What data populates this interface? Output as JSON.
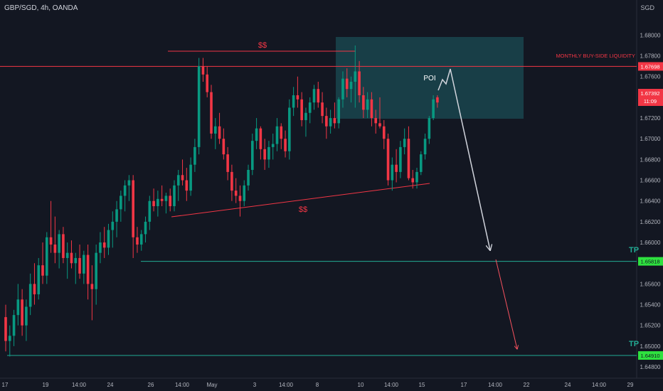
{
  "header": {
    "symbol": "GBP/SGD, 4h, OANDA",
    "currency": "SGD"
  },
  "chart_data": {
    "type": "candlestick",
    "ylim": [
      1.6478,
      1.6827
    ],
    "y_ticks": [
      "1.68000",
      "1.67800",
      "1.67600",
      "1.67400",
      "1.67200",
      "1.67000",
      "1.66800",
      "1.66600",
      "1.66400",
      "1.66200",
      "1.66000",
      "1.65800",
      "1.65600",
      "1.65400",
      "1.65200",
      "1.65000",
      "1.64800"
    ],
    "x_ticks": [
      "17",
      "19",
      "14:00",
      "24",
      "26",
      "14:00",
      "May",
      "3",
      "14:00",
      "8",
      "10",
      "14:00",
      "15",
      "17",
      "14:00",
      "22",
      "24",
      "14:00",
      "29"
    ],
    "price_labels": {
      "liquidity": "1.67698",
      "current": "1.67392",
      "countdown": "11:09",
      "tp1": "1.65818",
      "tp2": "1.64910"
    },
    "annotations": {
      "liquidity_text": "MONTHLY BUY-SIDE LIQUIDITY",
      "top_liquidity": "$$",
      "bottom_liquidity": "$$",
      "poi": "POI",
      "tp1": "TP",
      "tp2": "TP"
    },
    "levels": {
      "liquidity": 1.67698,
      "tp1": 1.65818,
      "tp2": 1.6491
    },
    "candles": [
      [
        1.6528,
        1.654,
        1.6495,
        1.6505
      ],
      [
        1.6505,
        1.652,
        1.649,
        1.651
      ],
      [
        1.651,
        1.6535,
        1.65,
        1.653
      ],
      [
        1.653,
        1.656,
        1.652,
        1.6545
      ],
      [
        1.6545,
        1.6555,
        1.651,
        1.652
      ],
      [
        1.652,
        1.6545,
        1.6505,
        1.6538
      ],
      [
        1.6538,
        1.657,
        1.653,
        1.656
      ],
      [
        1.656,
        1.658,
        1.654,
        1.655
      ],
      [
        1.655,
        1.6585,
        1.6545,
        1.6578
      ],
      [
        1.6578,
        1.66,
        1.656,
        1.6568
      ],
      [
        1.6568,
        1.661,
        1.656,
        1.6605
      ],
      [
        1.6605,
        1.664,
        1.659,
        1.6598
      ],
      [
        1.6598,
        1.6625,
        1.658,
        1.659
      ],
      [
        1.659,
        1.6612,
        1.6575,
        1.6608
      ],
      [
        1.6608,
        1.6615,
        1.658,
        1.6585
      ],
      [
        1.6585,
        1.66,
        1.6565,
        1.659
      ],
      [
        1.659,
        1.6602,
        1.6575,
        1.658
      ],
      [
        1.658,
        1.659,
        1.656,
        1.6585
      ],
      [
        1.6585,
        1.6598,
        1.6565,
        1.657
      ],
      [
        1.657,
        1.6592,
        1.656,
        1.6588
      ],
      [
        1.6588,
        1.6598,
        1.6545,
        1.656
      ],
      [
        1.656,
        1.6578,
        1.6525,
        1.6555
      ],
      [
        1.6555,
        1.6598,
        1.654,
        1.659
      ],
      [
        1.659,
        1.661,
        1.658,
        1.66
      ],
      [
        1.66,
        1.6615,
        1.6585,
        1.6595
      ],
      [
        1.6595,
        1.6618,
        1.6588,
        1.6612
      ],
      [
        1.6612,
        1.663,
        1.6595,
        1.662
      ],
      [
        1.662,
        1.664,
        1.6605,
        1.6632
      ],
      [
        1.6632,
        1.665,
        1.662,
        1.6645
      ],
      [
        1.6645,
        1.666,
        1.663,
        1.6655
      ],
      [
        1.6655,
        1.6665,
        1.664,
        1.666
      ],
      [
        1.666,
        1.6665,
        1.6585,
        1.6605
      ],
      [
        1.6605,
        1.6615,
        1.659,
        1.6598
      ],
      [
        1.6598,
        1.6612,
        1.6592,
        1.6608
      ],
      [
        1.6608,
        1.6625,
        1.66,
        1.662
      ],
      [
        1.662,
        1.6645,
        1.6612,
        1.664
      ],
      [
        1.664,
        1.6652,
        1.663,
        1.6635
      ],
      [
        1.6635,
        1.665,
        1.6625,
        1.6642
      ],
      [
        1.6642,
        1.6655,
        1.6635,
        1.664
      ],
      [
        1.664,
        1.6648,
        1.6628,
        1.6645
      ],
      [
        1.6645,
        1.6652,
        1.663,
        1.6635
      ],
      [
        1.6635,
        1.666,
        1.663,
        1.6655
      ],
      [
        1.6655,
        1.667,
        1.664,
        1.6665
      ],
      [
        1.6665,
        1.668,
        1.6655,
        1.666
      ],
      [
        1.666,
        1.6672,
        1.664,
        1.665
      ],
      [
        1.665,
        1.6682,
        1.6645,
        1.6675
      ],
      [
        1.6675,
        1.67,
        1.6668,
        1.6692
      ],
      [
        1.6692,
        1.6778,
        1.6685,
        1.677
      ],
      [
        1.677,
        1.6778,
        1.6755,
        1.6762
      ],
      [
        1.6762,
        1.677,
        1.674,
        1.6745
      ],
      [
        1.6745,
        1.6752,
        1.67,
        1.6705
      ],
      [
        1.6705,
        1.672,
        1.669,
        1.6712
      ],
      [
        1.6712,
        1.6725,
        1.6695,
        1.67
      ],
      [
        1.67,
        1.671,
        1.668,
        1.6685
      ],
      [
        1.6685,
        1.6692,
        1.666,
        1.6668
      ],
      [
        1.6668,
        1.6675,
        1.664,
        1.665
      ],
      [
        1.665,
        1.6662,
        1.6638,
        1.6645
      ],
      [
        1.6645,
        1.6655,
        1.6625,
        1.664
      ],
      [
        1.664,
        1.666,
        1.6635,
        1.6655
      ],
      [
        1.6655,
        1.6675,
        1.665,
        1.667
      ],
      [
        1.667,
        1.6705,
        1.6665,
        1.6698
      ],
      [
        1.6698,
        1.672,
        1.669,
        1.671
      ],
      [
        1.671,
        1.6712,
        1.668,
        1.669
      ],
      [
        1.669,
        1.67,
        1.667,
        1.668
      ],
      [
        1.668,
        1.6698,
        1.6672,
        1.6692
      ],
      [
        1.6692,
        1.6705,
        1.668,
        1.6695
      ],
      [
        1.6695,
        1.672,
        1.6688,
        1.6712
      ],
      [
        1.6712,
        1.6715,
        1.669,
        1.67
      ],
      [
        1.67,
        1.6708,
        1.6682,
        1.6688
      ],
      [
        1.6688,
        1.6738,
        1.668,
        1.673
      ],
      [
        1.673,
        1.675,
        1.6722,
        1.6742
      ],
      [
        1.6742,
        1.676,
        1.673,
        1.6738
      ],
      [
        1.6738,
        1.6745,
        1.6712,
        1.6718
      ],
      [
        1.6718,
        1.673,
        1.6702,
        1.6725
      ],
      [
        1.6725,
        1.674,
        1.6715,
        1.6735
      ],
      [
        1.6735,
        1.6752,
        1.6728,
        1.6748
      ],
      [
        1.6748,
        1.6755,
        1.673,
        1.6735
      ],
      [
        1.6735,
        1.6745,
        1.6715,
        1.6722
      ],
      [
        1.6722,
        1.673,
        1.67,
        1.6712
      ],
      [
        1.6712,
        1.6728,
        1.6705,
        1.672
      ],
      [
        1.672,
        1.6735,
        1.671,
        1.6715
      ],
      [
        1.6715,
        1.674,
        1.671,
        1.6738
      ],
      [
        1.6738,
        1.6765,
        1.673,
        1.6758
      ],
      [
        1.6758,
        1.6768,
        1.674,
        1.6748
      ],
      [
        1.6748,
        1.676,
        1.6735,
        1.6755
      ],
      [
        1.6755,
        1.679,
        1.673,
        1.6765
      ],
      [
        1.6765,
        1.6775,
        1.6735,
        1.6742
      ],
      [
        1.6742,
        1.675,
        1.672,
        1.6728
      ],
      [
        1.6728,
        1.6745,
        1.672,
        1.6738
      ],
      [
        1.6738,
        1.6745,
        1.6712,
        1.672
      ],
      [
        1.672,
        1.6728,
        1.6705,
        1.6715
      ],
      [
        1.6715,
        1.674,
        1.671,
        1.6712
      ],
      [
        1.6712,
        1.6718,
        1.669,
        1.67
      ],
      [
        1.67,
        1.6705,
        1.6655,
        1.666
      ],
      [
        1.666,
        1.6682,
        1.665,
        1.6675
      ],
      [
        1.6675,
        1.669,
        1.6658,
        1.6668
      ],
      [
        1.6668,
        1.6698,
        1.6662,
        1.6692
      ],
      [
        1.6692,
        1.671,
        1.6685,
        1.67
      ],
      [
        1.67,
        1.6712,
        1.666,
        1.6662
      ],
      [
        1.6662,
        1.667,
        1.6652,
        1.6658
      ],
      [
        1.6658,
        1.6672,
        1.6652,
        1.6668
      ],
      [
        1.6668,
        1.6688,
        1.6665,
        1.6685
      ],
      [
        1.6685,
        1.6705,
        1.668,
        1.67
      ],
      [
        1.67,
        1.6722,
        1.6695,
        1.672
      ],
      [
        1.672,
        1.6742,
        1.6718,
        1.6738
      ],
      [
        1.674,
        1.6742,
        1.673,
        1.6735
      ]
    ]
  }
}
